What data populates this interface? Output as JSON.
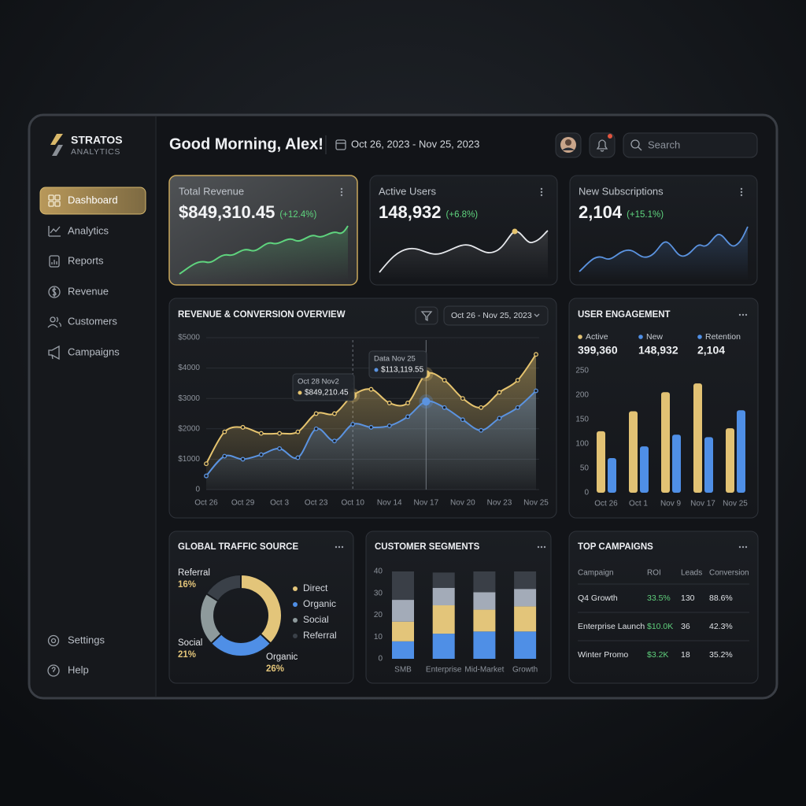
{
  "brand": {
    "name": "STRATOS",
    "tagline": "ANALYTICS"
  },
  "header": {
    "greeting": "Good Morning, Alex!",
    "date_range": "Oct 26, 2023 - Nov 25, 2023",
    "search_placeholder": "Search"
  },
  "nav": [
    "Dashboard",
    "Analytics",
    "Reports",
    "Revenue",
    "Customers",
    "Campaigns"
  ],
  "footer_nav": [
    "Settings",
    "Help"
  ],
  "kpis": [
    {
      "label": "Total Revenue",
      "value": "$849,310.45",
      "change": "(+12.4%)"
    },
    {
      "label": "Active Users",
      "value": "148,932",
      "change": "(+6.8%)"
    },
    {
      "label": "New Subscriptions",
      "value": "2,104",
      "change": "(+15.1%)"
    }
  ],
  "chart_data": [
    {
      "type": "area",
      "title": "REVENUE & CONVERSION OVERVIEW",
      "date_filter": "Oct 26 - Nov 25, 2023",
      "categories": [
        "Oct 26",
        null,
        "Oct 29",
        null,
        "Oct 3",
        null,
        "Oct 23",
        null,
        "Oct 10",
        null,
        "Nov 14",
        null,
        "Nov 17",
        null,
        "Nov 20",
        null,
        "Nov 23",
        null,
        "Nov 25"
      ],
      "series": [
        {
          "color": "#e6c46f",
          "values": [
            850,
            1900,
            2050,
            1850,
            1850,
            1900,
            2500,
            2500,
            3100,
            3300,
            2850,
            2850,
            3800,
            3600,
            3000,
            2700,
            3200,
            3600,
            4450
          ]
        },
        {
          "color": "#5b93e0",
          "values": [
            450,
            1100,
            1000,
            1150,
            1350,
            1050,
            2000,
            1600,
            2150,
            2050,
            2100,
            2400,
            2900,
            2700,
            2300,
            1950,
            2350,
            2700,
            3250
          ]
        }
      ],
      "ylim": [
        0,
        5000
      ],
      "yticks": [
        0,
        {
          "value": 1000,
          "label": "$1000"
        },
        {
          "value": 2000,
          "label": "$2000"
        },
        {
          "value": 3000,
          "label": "$3000"
        },
        {
          "value": 4000,
          "label": "$4000"
        },
        {
          "value": 5000,
          "label": "$5000"
        }
      ],
      "grid": true,
      "annotations": [
        {
          "title": "Oct 28 Nov2",
          "text": "$849,210.45"
        },
        {
          "title": "Data Nov 25",
          "text": "$113,119.55"
        }
      ]
    },
    {
      "type": "bar",
      "title": "USER ENGAGEMENT",
      "legend": [
        {
          "name": "Active",
          "value": "399,360",
          "color": "#e2c274"
        },
        {
          "name": "New",
          "value": "148,932",
          "color": "#4f8fe6"
        },
        {
          "name": "Retention",
          "value": "2,104",
          "color": "#4f8fe6"
        }
      ],
      "categories": [
        "Oct 26",
        "Oct 1",
        "Nov 9",
        "Nov 17",
        "Nov 25"
      ],
      "series": [
        {
          "color": "#e2c274",
          "values": [
            126,
            167,
            206,
            224,
            132
          ]
        },
        {
          "color": "#4f8fe6",
          "values": [
            71,
            95,
            119,
            114,
            169
          ]
        }
      ],
      "ylim": [
        0,
        250
      ],
      "yticks": [
        0,
        50,
        100,
        150,
        200,
        250
      ]
    },
    {
      "type": "pie",
      "title": "GLOBAL TRAFFIC SOURCE",
      "categories": [
        "Direct",
        "Organic",
        "Social",
        "Referral"
      ],
      "values": [
        37,
        26,
        21,
        16
      ],
      "value_labels": [
        null,
        "26%",
        "21%",
        "16%"
      ],
      "colors": [
        "#e3c57a",
        "#4f8fe6",
        "#8e9a9c",
        "#3a4048"
      ]
    },
    {
      "type": "stacked_bar",
      "title": "CUSTOMER SEGMENTS",
      "categories": [
        "SMB",
        "Enterprise",
        "Mid-Market",
        "Growth"
      ],
      "series": [
        {
          "color": "#4f8fe6",
          "values": [
            8,
            11.5,
            12.5,
            12.5
          ]
        },
        {
          "color": "#e3c57a",
          "values": [
            9,
            13,
            10,
            11.5
          ]
        },
        {
          "color": "#a3abb8",
          "values": [
            10,
            8,
            8,
            8
          ]
        },
        {
          "color": "#3a3f47",
          "values": [
            13,
            7,
            9.5,
            8
          ]
        }
      ],
      "ylim": [
        0,
        40
      ],
      "yticks": [
        0,
        10,
        20,
        30,
        40
      ]
    }
  ],
  "table": {
    "title": "TOP CAMPAIGNS",
    "columns": [
      "Campaign",
      "ROI",
      "Leads",
      "Conversion"
    ],
    "rows": [
      [
        "Q4 Growth",
        "33.5%",
        "130",
        "88.6%"
      ],
      [
        "Enterprise Launch",
        "$10.0K",
        "36",
        "42.3%"
      ],
      [
        "Winter Promo",
        "$3.2K",
        "18",
        "35.2%"
      ]
    ]
  }
}
